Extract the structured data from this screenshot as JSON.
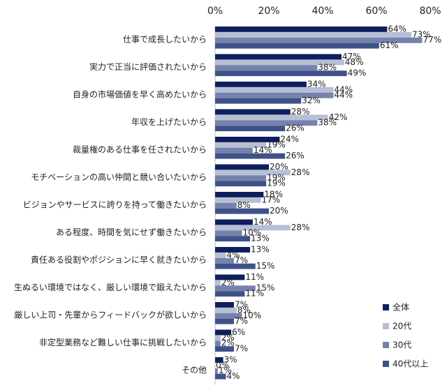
{
  "chart_data": {
    "type": "bar",
    "orientation": "horizontal",
    "title": "",
    "xlabel": "",
    "ylabel": "",
    "xlim": [
      0,
      80
    ],
    "x_ticks": [
      "0%",
      "20%",
      "40%",
      "60%",
      "80%"
    ],
    "x_axis_position": "top",
    "grid": false,
    "legend_position": "bottom-right",
    "value_suffix": "%",
    "categories": [
      "仕事で成長したいから",
      "実力で正当に評価されたいから",
      "自身の市場価値を早く高めたいから",
      "年収を上げたいから",
      "裁量権のある仕事を任されたいから",
      "モチベーションの高い仲間と競い合いたいから",
      "ビジョンやサービスに誇りを持って働きたいから",
      "ある程度、時間を気にせず働きたいから",
      "責任ある役割やポジションに早く就きたいから",
      "生ぬるい環境ではなく、厳しい環境で鍛えたいから",
      "厳しい上司・先輩からフィードバックが欲しいから",
      "非定型業務など難しい仕事に挑戦したいから",
      "その他"
    ],
    "series": [
      {
        "name": "全体",
        "color": "#0d1f5c",
        "values": [
          64,
          47,
          34,
          28,
          24,
          20,
          18,
          14,
          13,
          11,
          7,
          6,
          3
        ]
      },
      {
        "name": "20代",
        "color": "#b7bfd5",
        "values": [
          73,
          48,
          44,
          42,
          19,
          28,
          17,
          28,
          4,
          2,
          8,
          2,
          0
        ]
      },
      {
        "name": "30代",
        "color": "#7582ac",
        "values": [
          77,
          38,
          44,
          38,
          14,
          19,
          8,
          10,
          7,
          15,
          10,
          2,
          1
        ]
      },
      {
        "name": "40代以上",
        "color": "#3f5288",
        "values": [
          61,
          49,
          32,
          26,
          26,
          19,
          20,
          13,
          15,
          11,
          7,
          7,
          4
        ]
      }
    ]
  }
}
